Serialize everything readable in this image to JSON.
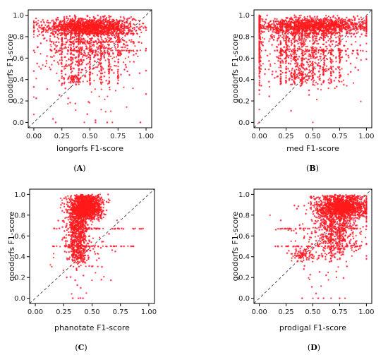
{
  "figure": {
    "background": "#ffffff",
    "point_color": "#ff1a1a",
    "halo_color": "#f1b6ee",
    "diag_color": "#444444"
  },
  "chart_data": [
    {
      "type": "scatter",
      "panel": "(A)",
      "xlabel": "longorfs F1-score",
      "ylabel": "goodorfs F1-score",
      "xlim": [
        -0.05,
        1.05
      ],
      "ylim": [
        -0.05,
        1.05
      ],
      "xticks": [
        "0.00",
        "0.25",
        "0.50",
        "0.75",
        "1.00"
      ],
      "yticks": [
        "0.0",
        "0.2",
        "0.4",
        "0.6",
        "0.8",
        "1.0"
      ],
      "diagonal": true,
      "clusters": [
        {
          "cx": 0.5,
          "cy": 0.89,
          "sx": 0.2,
          "sy": 0.04,
          "n": 1400
        },
        {
          "cx": 0.5,
          "cy": 0.7,
          "sx": 0.2,
          "sy": 0.12,
          "n": 500
        },
        {
          "cx": 0.35,
          "cy": 0.41,
          "sx": 0.04,
          "sy": 0.02,
          "n": 60
        },
        {
          "cx": 0.5,
          "cy": 0.4,
          "sx": 0.25,
          "sy": 0.22,
          "n": 100
        }
      ],
      "columns": [
        0.25,
        0.33,
        0.4,
        0.5,
        0.6,
        0.67,
        0.75
      ],
      "rows": [
        0.83,
        0.67,
        0.75
      ],
      "extra_points": [
        [
          0.02,
          0.97
        ],
        [
          0.04,
          0.95
        ],
        [
          0.05,
          0.82
        ],
        [
          0.06,
          0.64
        ],
        [
          0.03,
          0.55
        ],
        [
          0.45,
          0.0
        ],
        [
          0.55,
          0.0
        ],
        [
          0.7,
          0.0
        ],
        [
          0.95,
          0.0
        ],
        [
          0.6,
          0.12
        ]
      ]
    },
    {
      "type": "scatter",
      "panel": "(B)",
      "xlabel": "med F1-score",
      "ylabel": "goodorfs F1-score",
      "xlim": [
        -0.05,
        1.05
      ],
      "ylim": [
        -0.05,
        1.05
      ],
      "xticks": [
        "0.00",
        "0.25",
        "0.50",
        "0.75",
        "1.00"
      ],
      "yticks": [
        "0.0",
        "0.2",
        "0.4",
        "0.6",
        "0.8",
        "1.0"
      ],
      "diagonal": true,
      "clusters": [
        {
          "cx": 0.5,
          "cy": 0.9,
          "sx": 0.28,
          "sy": 0.04,
          "n": 1400
        },
        {
          "cx": 0.4,
          "cy": 0.68,
          "sx": 0.18,
          "sy": 0.13,
          "n": 450
        },
        {
          "cx": 0.4,
          "cy": 0.42,
          "sx": 0.08,
          "sy": 0.04,
          "n": 80
        },
        {
          "cx": 0.0,
          "cy": 0.7,
          "sx": 0.01,
          "sy": 0.2,
          "n": 120
        },
        {
          "cx": 0.65,
          "cy": 0.55,
          "sx": 0.2,
          "sy": 0.15,
          "n": 120
        }
      ],
      "columns": [
        0.2,
        0.25,
        0.33,
        0.4,
        0.5,
        0.6,
        0.67,
        0.75
      ],
      "rows": [
        0.83,
        0.67
      ],
      "extra_points": [
        [
          0.0,
          0.0
        ],
        [
          0.0,
          0.12
        ],
        [
          0.0,
          0.3
        ],
        [
          0.5,
          0.0
        ],
        [
          0.98,
          0.95
        ],
        [
          0.95,
          0.98
        ]
      ]
    },
    {
      "type": "scatter",
      "panel": "(C)",
      "xlabel": "phanotate F1-score",
      "ylabel": "goodorfs F1-score",
      "xlim": [
        -0.05,
        1.05
      ],
      "ylim": [
        -0.05,
        1.05
      ],
      "xticks": [
        "0.00",
        "0.25",
        "0.50",
        "0.75",
        "1.00"
      ],
      "yticks": [
        "0.0",
        "0.2",
        "0.4",
        "0.6",
        "0.8",
        "1.0"
      ],
      "diagonal": true,
      "clusters": [
        {
          "cx": 0.45,
          "cy": 0.88,
          "sx": 0.07,
          "sy": 0.06,
          "n": 1400
        },
        {
          "cx": 0.37,
          "cy": 0.68,
          "sx": 0.05,
          "sy": 0.13,
          "n": 600
        },
        {
          "cx": 0.37,
          "cy": 0.45,
          "sx": 0.04,
          "sy": 0.06,
          "n": 150
        },
        {
          "cx": 0.45,
          "cy": 0.4,
          "sx": 0.12,
          "sy": 0.18,
          "n": 60
        }
      ],
      "columns": [
        0.33,
        0.4
      ],
      "rows": [
        0.67,
        0.5
      ],
      "extra_points": [
        [
          0.33,
          0.0
        ],
        [
          0.38,
          0.0
        ],
        [
          0.42,
          0.0
        ],
        [
          0.45,
          0.05
        ],
        [
          0.4,
          0.1
        ],
        [
          0.72,
          0.75
        ],
        [
          0.65,
          0.62
        ],
        [
          0.7,
          0.5
        ],
        [
          0.28,
          0.55
        ]
      ]
    },
    {
      "type": "scatter",
      "panel": "(D)",
      "xlabel": "prodigal F1-score",
      "ylabel": "goodorfs F1-score",
      "xlim": [
        -0.05,
        1.05
      ],
      "ylim": [
        -0.05,
        1.05
      ],
      "xticks": [
        "0.00",
        "0.25",
        "0.50",
        "0.75",
        "1.00"
      ],
      "yticks": [
        "0.0",
        "0.2",
        "0.4",
        "0.6",
        "0.8",
        "1.0"
      ],
      "diagonal": true,
      "clusters": [
        {
          "cx": 0.78,
          "cy": 0.88,
          "sx": 0.12,
          "sy": 0.06,
          "n": 1400
        },
        {
          "cx": 0.72,
          "cy": 0.65,
          "sx": 0.1,
          "sy": 0.12,
          "n": 500
        },
        {
          "cx": 0.4,
          "cy": 0.42,
          "sx": 0.05,
          "sy": 0.03,
          "n": 90
        },
        {
          "cx": 0.6,
          "cy": 0.55,
          "sx": 0.18,
          "sy": 0.18,
          "n": 150
        }
      ],
      "columns": [
        0.67,
        0.75
      ],
      "rows": [
        0.67,
        0.5
      ],
      "extra_points": [
        [
          0.4,
          0.0
        ],
        [
          0.5,
          0.0
        ],
        [
          0.55,
          0.0
        ],
        [
          0.67,
          0.0
        ],
        [
          0.75,
          0.0
        ],
        [
          0.8,
          0.0
        ],
        [
          0.15,
          0.5
        ],
        [
          0.1,
          0.8
        ],
        [
          0.2,
          0.75
        ],
        [
          0.3,
          0.65
        ]
      ]
    }
  ]
}
